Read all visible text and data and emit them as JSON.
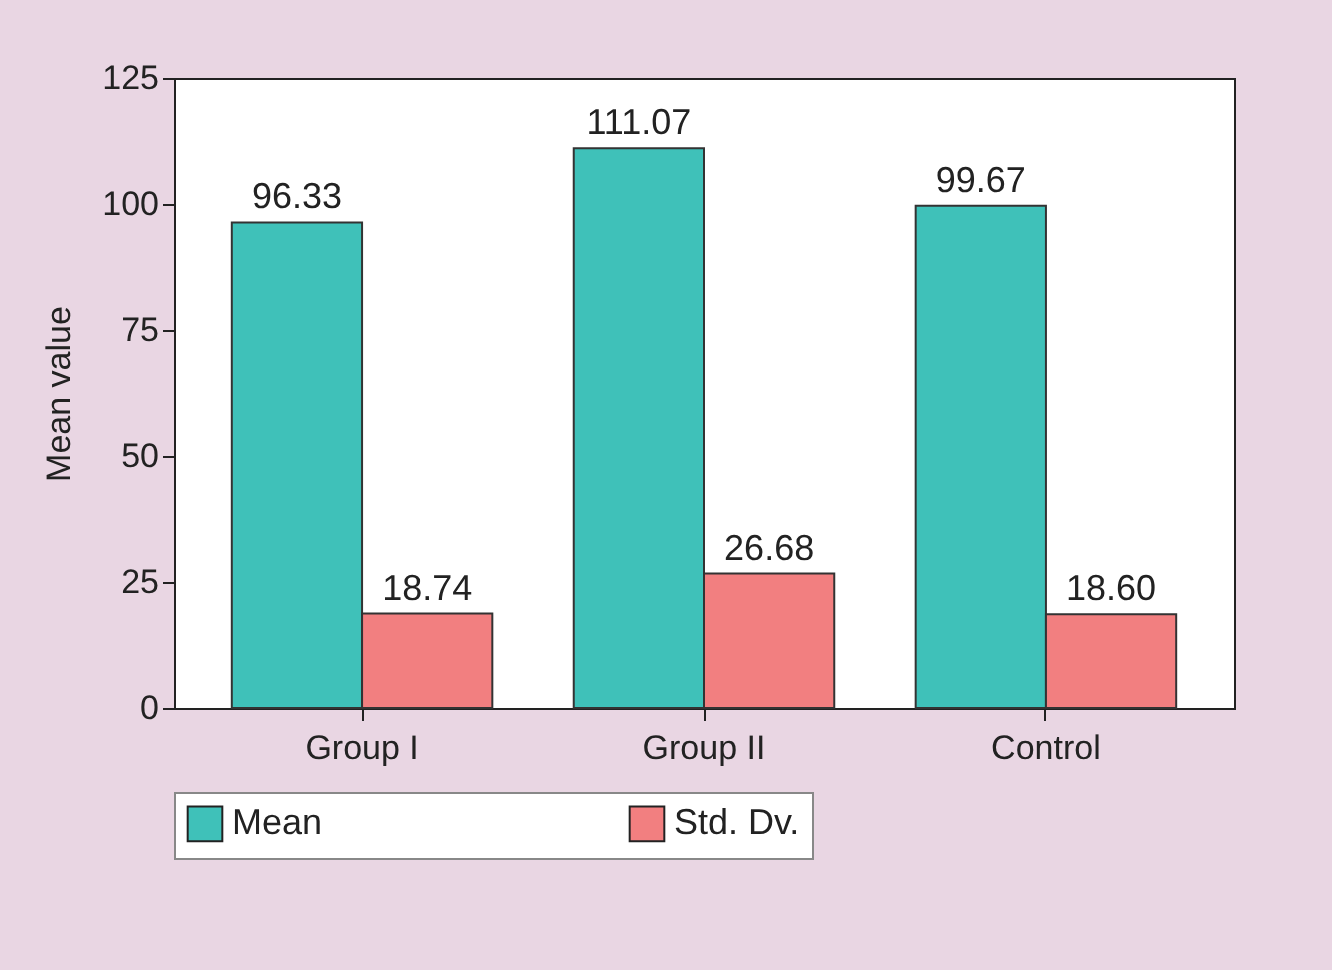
{
  "chart_data": {
    "type": "bar",
    "categories": [
      "Group I",
      "Group II",
      "Control"
    ],
    "ylabel": "Mean value",
    "series": [
      {
        "name": "Mean",
        "color": "#3fc1b9",
        "values": [
          96.33,
          111.07,
          99.67
        ],
        "value_labels": [
          "96.33",
          "111.07",
          "99.67"
        ]
      },
      {
        "name": "Std. Dv.",
        "color": "#f27f80",
        "values": [
          18.74,
          26.68,
          18.6
        ],
        "value_labels": [
          "18.74",
          "26.68",
          "18.60"
        ]
      }
    ],
    "ylim": [
      0,
      125
    ],
    "yticks": [
      0,
      25,
      50,
      75,
      100,
      125
    ],
    "grid": false,
    "legend": "bottom"
  }
}
